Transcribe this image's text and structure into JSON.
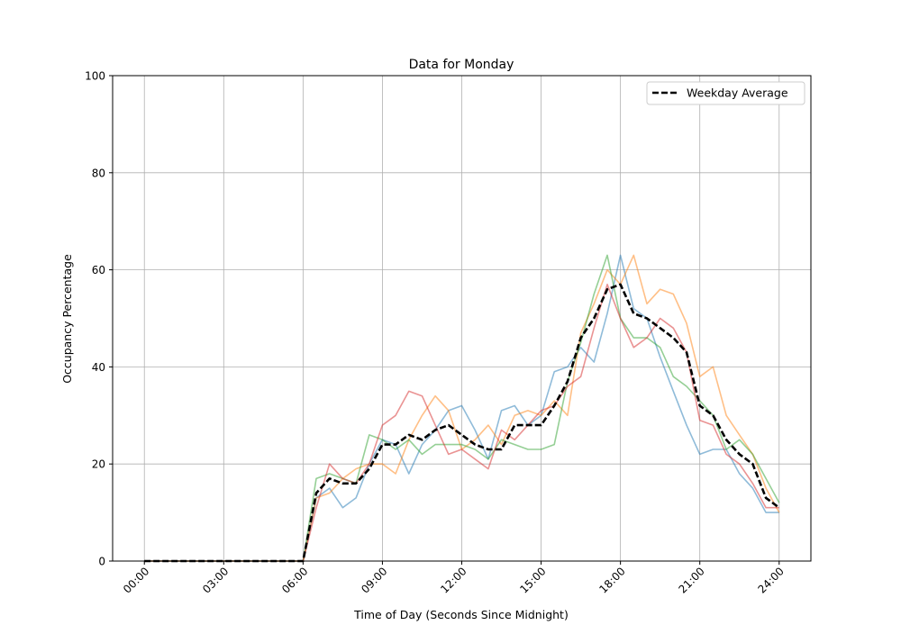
{
  "chart_data": {
    "type": "line",
    "title": "Data for Monday",
    "xlabel": "Time of Day (Seconds Since Midnight)",
    "ylabel": "Occupancy Percentage",
    "xlim_hours": [
      -1.2,
      25.2
    ],
    "ylim": [
      0,
      100
    ],
    "grid": true,
    "legend_position": "top-right",
    "x_tick_hours": [
      0,
      3,
      6,
      9,
      12,
      15,
      18,
      21,
      24
    ],
    "x_tick_labels": [
      "00:00",
      "03:00",
      "06:00",
      "09:00",
      "12:00",
      "15:00",
      "18:00",
      "21:00",
      "24:00"
    ],
    "y_ticks": [
      0,
      20,
      40,
      60,
      80,
      100
    ],
    "x_hours": [
      0,
      0.5,
      1,
      1.5,
      2,
      2.5,
      3,
      3.5,
      4,
      4.5,
      5,
      5.5,
      6,
      6.5,
      7,
      7.5,
      8,
      8.5,
      9,
      9.5,
      10,
      10.5,
      11,
      11.5,
      12,
      12.5,
      13,
      13.5,
      14,
      14.5,
      15,
      15.5,
      16,
      16.5,
      17,
      17.5,
      18,
      18.5,
      19,
      19.5,
      20,
      20.5,
      21,
      21.5,
      22,
      22.5,
      23,
      23.5,
      24
    ],
    "series": [
      {
        "color": "#1f77b4",
        "style": "solid",
        "values": [
          0,
          0,
          0,
          0,
          0,
          0,
          0,
          0,
          0,
          0,
          0,
          0,
          0,
          13,
          15,
          11,
          13,
          20,
          25,
          24,
          18,
          24,
          27,
          31,
          32,
          27,
          21,
          31,
          32,
          28,
          30,
          39,
          40,
          44,
          41,
          51,
          63,
          52,
          50,
          42,
          35,
          28,
          22,
          23,
          23,
          18,
          15,
          10,
          10
        ]
      },
      {
        "color": "#ff7f0e",
        "style": "solid",
        "values": [
          0,
          0,
          0,
          0,
          0,
          0,
          0,
          0,
          0,
          0,
          0,
          0,
          0,
          13,
          14,
          17,
          19,
          20,
          20,
          18,
          25,
          30,
          34,
          31,
          23,
          25,
          28,
          24,
          30,
          31,
          30,
          33,
          30,
          47,
          53,
          60,
          57,
          63,
          53,
          56,
          55,
          49,
          38,
          40,
          30,
          26,
          22,
          15,
          10
        ]
      },
      {
        "color": "#2ca02c",
        "style": "solid",
        "values": [
          0,
          0,
          0,
          0,
          0,
          0,
          0,
          0,
          0,
          0,
          0,
          0,
          0,
          17,
          18,
          17,
          16,
          26,
          25,
          23,
          25,
          22,
          24,
          24,
          24,
          23,
          21,
          25,
          24,
          23,
          23,
          24,
          37,
          45,
          55,
          63,
          50,
          46,
          46,
          44,
          38,
          36,
          33,
          30,
          23,
          25,
          22,
          17,
          12
        ]
      },
      {
        "color": "#d62728",
        "style": "solid",
        "values": [
          0,
          0,
          0,
          0,
          0,
          0,
          0,
          0,
          0,
          0,
          0,
          0,
          0,
          11,
          20,
          17,
          16,
          20,
          28,
          30,
          35,
          34,
          28,
          22,
          23,
          21,
          19,
          27,
          25,
          28,
          31,
          32,
          36,
          38,
          48,
          57,
          50,
          44,
          46,
          50,
          48,
          43,
          29,
          28,
          22,
          20,
          16,
          11,
          11
        ]
      },
      {
        "name": "Weekday Average",
        "color": "#000000",
        "style": "dashed",
        "values": [
          0,
          0,
          0,
          0,
          0,
          0,
          0,
          0,
          0,
          0,
          0,
          0,
          0,
          14,
          17,
          16,
          16,
          19,
          24,
          24,
          26,
          25,
          27,
          28,
          26,
          24,
          23,
          23,
          28,
          28,
          28,
          32,
          37,
          46,
          50,
          56,
          57,
          51,
          50,
          48,
          46,
          43,
          32,
          30,
          25,
          22,
          20,
          13,
          11
        ]
      }
    ]
  }
}
